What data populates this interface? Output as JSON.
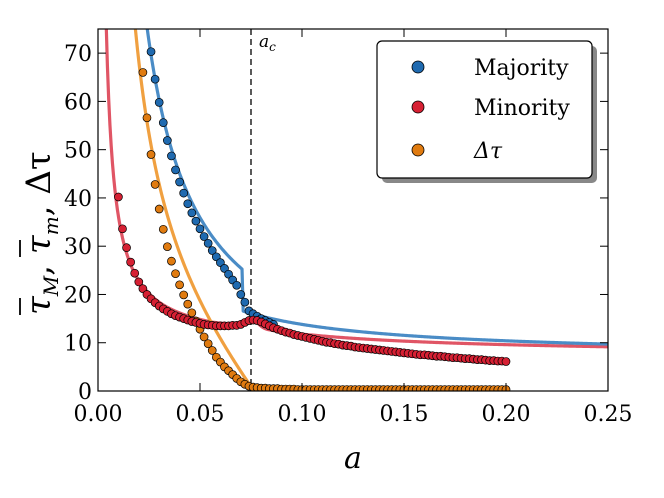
{
  "chart_data": {
    "type": "scatter",
    "title": "",
    "xlabel": "a",
    "ylabel": "τ̄M, τ̄m, Δτ",
    "ylabel_parts": [
      "τ",
      "M",
      ", ",
      "τ",
      "m",
      ", Δτ"
    ],
    "xlim": [
      0.0,
      0.25
    ],
    "ylim": [
      0,
      75
    ],
    "xticks": [
      0.0,
      0.05,
      0.1,
      0.15,
      0.2,
      0.25
    ],
    "xtick_labels": [
      "0.00",
      "0.05",
      "0.10",
      "0.15",
      "0.20",
      "0.25"
    ],
    "yticks": [
      0,
      10,
      20,
      30,
      40,
      50,
      60,
      70
    ],
    "ytick_labels": [
      "0",
      "10",
      "20",
      "30",
      "40",
      "50",
      "60",
      "70"
    ],
    "grid": false,
    "legend_position": "top-right",
    "annotation": {
      "label": "a",
      "subscript": "c",
      "x": 0.075
    },
    "colors": {
      "majority": "#1f6ab0",
      "majority_line": "#4a8cc6",
      "minority": "#d62033",
      "minority_line": "#e05565",
      "delta": "#e07b10",
      "delta_line": "#f0a040"
    },
    "series": [
      {
        "name": "Majority",
        "key": "majority",
        "points": [
          [
            0.026,
            70.3
          ],
          [
            0.028,
            64.6
          ],
          [
            0.03,
            59.8
          ],
          [
            0.032,
            55.6
          ],
          [
            0.034,
            51.9
          ],
          [
            0.036,
            48.7
          ],
          [
            0.038,
            45.8
          ],
          [
            0.04,
            43.3
          ],
          [
            0.042,
            41.0
          ],
          [
            0.044,
            38.8
          ],
          [
            0.046,
            36.9
          ],
          [
            0.048,
            35.2
          ],
          [
            0.05,
            33.6
          ],
          [
            0.052,
            32.0
          ],
          [
            0.054,
            30.6
          ],
          [
            0.056,
            29.1
          ],
          [
            0.058,
            27.8
          ],
          [
            0.06,
            26.6
          ],
          [
            0.062,
            25.4
          ],
          [
            0.064,
            24.2
          ],
          [
            0.066,
            23.0
          ],
          [
            0.068,
            21.9
          ],
          [
            0.07,
            20.0
          ],
          [
            0.072,
            18.4
          ],
          [
            0.074,
            16.6
          ],
          [
            0.076,
            16.0
          ],
          [
            0.078,
            15.5
          ],
          [
            0.08,
            15.0
          ],
          [
            0.082,
            14.6
          ],
          [
            0.084,
            14.2
          ],
          [
            0.086,
            13.8
          ]
        ]
      },
      {
        "name": "Minority",
        "key": "minority",
        "points": [
          [
            0.01,
            40.2
          ],
          [
            0.012,
            33.6
          ],
          [
            0.014,
            29.7
          ],
          [
            0.016,
            26.7
          ],
          [
            0.018,
            24.4
          ],
          [
            0.02,
            22.6
          ],
          [
            0.022,
            21.2
          ],
          [
            0.024,
            20.0
          ],
          [
            0.026,
            19.1
          ],
          [
            0.028,
            18.3
          ],
          [
            0.03,
            17.6
          ],
          [
            0.032,
            17.0
          ],
          [
            0.034,
            16.5
          ],
          [
            0.036,
            16.0
          ],
          [
            0.038,
            15.6
          ],
          [
            0.04,
            15.3
          ],
          [
            0.042,
            15.0
          ],
          [
            0.044,
            14.7
          ],
          [
            0.046,
            14.4
          ],
          [
            0.048,
            14.2
          ],
          [
            0.05,
            14.0
          ],
          [
            0.052,
            13.8
          ],
          [
            0.054,
            13.7
          ],
          [
            0.056,
            13.6
          ],
          [
            0.058,
            13.5
          ],
          [
            0.06,
            13.5
          ],
          [
            0.062,
            13.5
          ],
          [
            0.064,
            13.5
          ],
          [
            0.066,
            13.6
          ],
          [
            0.068,
            13.6
          ],
          [
            0.07,
            13.8
          ],
          [
            0.072,
            14.2
          ],
          [
            0.074,
            14.6
          ],
          [
            0.076,
            14.7
          ],
          [
            0.078,
            14.6
          ],
          [
            0.08,
            14.3
          ],
          [
            0.082,
            13.9
          ],
          [
            0.084,
            13.5
          ],
          [
            0.086,
            13.1
          ],
          [
            0.088,
            12.8
          ],
          [
            0.09,
            12.5
          ],
          [
            0.092,
            12.2
          ],
          [
            0.094,
            12.0
          ],
          [
            0.096,
            11.7
          ],
          [
            0.098,
            11.5
          ],
          [
            0.1,
            11.3
          ],
          [
            0.102,
            11.1
          ],
          [
            0.104,
            10.9
          ],
          [
            0.106,
            10.7
          ],
          [
            0.108,
            10.5
          ],
          [
            0.11,
            10.3
          ],
          [
            0.112,
            10.1
          ],
          [
            0.114,
            10.0
          ],
          [
            0.116,
            9.8
          ],
          [
            0.118,
            9.7
          ],
          [
            0.12,
            9.5
          ],
          [
            0.122,
            9.4
          ],
          [
            0.124,
            9.3
          ],
          [
            0.126,
            9.1
          ],
          [
            0.128,
            9.0
          ],
          [
            0.13,
            8.9
          ],
          [
            0.132,
            8.8
          ],
          [
            0.134,
            8.7
          ],
          [
            0.136,
            8.6
          ],
          [
            0.138,
            8.5
          ],
          [
            0.14,
            8.4
          ],
          [
            0.142,
            8.3
          ],
          [
            0.144,
            8.2
          ],
          [
            0.146,
            8.1
          ],
          [
            0.148,
            8.0
          ],
          [
            0.15,
            7.9
          ],
          [
            0.152,
            7.8
          ],
          [
            0.154,
            7.7
          ],
          [
            0.156,
            7.6
          ],
          [
            0.158,
            7.5
          ],
          [
            0.16,
            7.5
          ],
          [
            0.162,
            7.4
          ],
          [
            0.164,
            7.3
          ],
          [
            0.166,
            7.2
          ],
          [
            0.168,
            7.2
          ],
          [
            0.17,
            7.1
          ],
          [
            0.172,
            7.0
          ],
          [
            0.174,
            6.9
          ],
          [
            0.176,
            6.9
          ],
          [
            0.178,
            6.8
          ],
          [
            0.18,
            6.7
          ],
          [
            0.182,
            6.7
          ],
          [
            0.184,
            6.6
          ],
          [
            0.186,
            6.5
          ],
          [
            0.188,
            6.5
          ],
          [
            0.19,
            6.4
          ],
          [
            0.192,
            6.3
          ],
          [
            0.194,
            6.3
          ],
          [
            0.196,
            6.2
          ],
          [
            0.198,
            6.2
          ],
          [
            0.2,
            6.1
          ]
        ]
      },
      {
        "name": "Δτ",
        "key": "delta",
        "points": [
          [
            0.022,
            66.0
          ],
          [
            0.024,
            56.6
          ],
          [
            0.026,
            49.0
          ],
          [
            0.028,
            42.8
          ],
          [
            0.03,
            37.7
          ],
          [
            0.032,
            33.5
          ],
          [
            0.034,
            29.9
          ],
          [
            0.036,
            26.9
          ],
          [
            0.038,
            24.3
          ],
          [
            0.04,
            22.0
          ],
          [
            0.042,
            19.9
          ],
          [
            0.044,
            18.0
          ],
          [
            0.046,
            16.2
          ],
          [
            0.048,
            14.5
          ],
          [
            0.05,
            12.8
          ],
          [
            0.052,
            11.2
          ],
          [
            0.054,
            9.8
          ],
          [
            0.056,
            8.4
          ],
          [
            0.058,
            7.0
          ],
          [
            0.06,
            6.0
          ],
          [
            0.062,
            5.0
          ],
          [
            0.064,
            4.2
          ],
          [
            0.066,
            3.4
          ],
          [
            0.068,
            2.6
          ],
          [
            0.07,
            1.9
          ],
          [
            0.072,
            1.4
          ],
          [
            0.074,
            1.0
          ],
          [
            0.076,
            0.8
          ],
          [
            0.078,
            0.7
          ],
          [
            0.08,
            0.6
          ],
          [
            0.082,
            0.6
          ],
          [
            0.084,
            0.5
          ],
          [
            0.086,
            0.5
          ],
          [
            0.088,
            0.5
          ],
          [
            0.09,
            0.4
          ],
          [
            0.092,
            0.4
          ],
          [
            0.094,
            0.4
          ],
          [
            0.096,
            0.4
          ],
          [
            0.098,
            0.3
          ],
          [
            0.1,
            0.3
          ],
          [
            0.102,
            0.3
          ],
          [
            0.104,
            0.3
          ],
          [
            0.106,
            0.3
          ],
          [
            0.108,
            0.3
          ],
          [
            0.11,
            0.3
          ],
          [
            0.112,
            0.3
          ],
          [
            0.114,
            0.3
          ],
          [
            0.116,
            0.3
          ],
          [
            0.118,
            0.3
          ],
          [
            0.12,
            0.3
          ],
          [
            0.122,
            0.3
          ],
          [
            0.124,
            0.3
          ],
          [
            0.126,
            0.3
          ],
          [
            0.128,
            0.3
          ],
          [
            0.13,
            0.3
          ],
          [
            0.132,
            0.3
          ],
          [
            0.134,
            0.3
          ],
          [
            0.136,
            0.3
          ],
          [
            0.138,
            0.3
          ],
          [
            0.14,
            0.3
          ],
          [
            0.142,
            0.3
          ],
          [
            0.144,
            0.3
          ],
          [
            0.146,
            0.3
          ],
          [
            0.148,
            0.3
          ],
          [
            0.15,
            0.3
          ],
          [
            0.152,
            0.3
          ],
          [
            0.154,
            0.3
          ],
          [
            0.156,
            0.3
          ],
          [
            0.158,
            0.3
          ],
          [
            0.16,
            0.3
          ],
          [
            0.162,
            0.3
          ],
          [
            0.164,
            0.3
          ],
          [
            0.166,
            0.3
          ],
          [
            0.168,
            0.3
          ],
          [
            0.17,
            0.3
          ],
          [
            0.172,
            0.3
          ],
          [
            0.174,
            0.3
          ],
          [
            0.176,
            0.3
          ],
          [
            0.178,
            0.3
          ],
          [
            0.18,
            0.3
          ],
          [
            0.182,
            0.3
          ],
          [
            0.184,
            0.3
          ],
          [
            0.186,
            0.3
          ],
          [
            0.188,
            0.3
          ],
          [
            0.19,
            0.3
          ],
          [
            0.192,
            0.3
          ],
          [
            0.194,
            0.3
          ],
          [
            0.196,
            0.3
          ],
          [
            0.198,
            0.3
          ],
          [
            0.2,
            0.3
          ]
        ]
      }
    ]
  }
}
